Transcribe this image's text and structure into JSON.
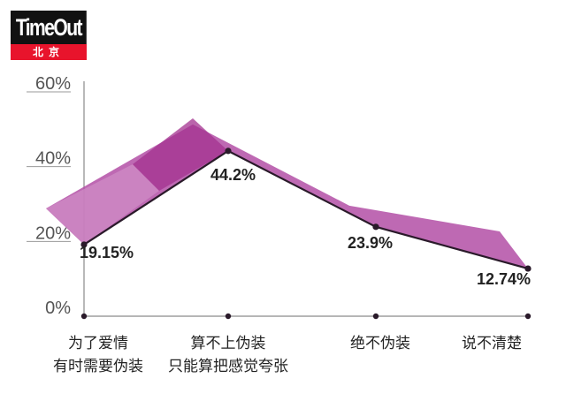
{
  "logo": {
    "name": "TimeOut",
    "city": "北京"
  },
  "chart_data": {
    "type": "line",
    "categories": [
      [
        "为了爱情",
        "有时需要伪装"
      ],
      [
        "算不上伪装",
        "只能算把感觉夸张"
      ],
      [
        "绝不伪装"
      ],
      [
        "说不清楚"
      ]
    ],
    "values": [
      19.15,
      44.2,
      23.9,
      12.74
    ],
    "value_labels": [
      "19.15%",
      "44.2%",
      "23.9%",
      "12.74%"
    ],
    "yticks": [
      "0%",
      "20%",
      "40%",
      "60%"
    ],
    "ylim": [
      0,
      60
    ],
    "ribbon_color": "#b34fa6",
    "line_color": "#2a1a2a"
  }
}
